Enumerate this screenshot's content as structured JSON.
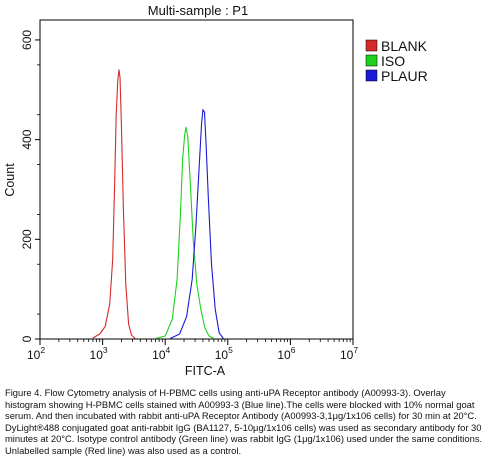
{
  "chart_data": {
    "type": "line",
    "title": "Multi-sample : P1",
    "xlabel": "FITC-A",
    "ylabel": "Count",
    "xscale": "log",
    "xlim": [
      100,
      10000000
    ],
    "ylim": [
      0,
      640
    ],
    "x_ticks": [
      {
        "value": 100,
        "base": "10",
        "exp": "2"
      },
      {
        "value": 1000,
        "base": "10",
        "exp": "3"
      },
      {
        "value": 10000,
        "base": "10",
        "exp": "4"
      },
      {
        "value": 100000,
        "base": "10",
        "exp": "5"
      },
      {
        "value": 1000000,
        "base": "10",
        "exp": "6"
      },
      {
        "value": 10000000,
        "base": "10",
        "exp": "7"
      }
    ],
    "y_ticks": [
      0,
      200,
      400,
      600
    ],
    "grid": false,
    "legend_position": "right",
    "series": [
      {
        "name": "BLANK",
        "color": "#d42a2a",
        "x": [
          700,
          900,
          1100,
          1300,
          1450,
          1550,
          1650,
          1750,
          1830,
          1900,
          2000,
          2150,
          2350,
          2600,
          2900,
          3300
        ],
        "y": [
          2,
          10,
          25,
          70,
          160,
          300,
          450,
          520,
          540,
          525,
          430,
          260,
          110,
          30,
          8,
          1
        ]
      },
      {
        "name": "ISO",
        "color": "#1fd11f",
        "x": [
          7000,
          10000,
          13000,
          15500,
          17500,
          19000,
          20500,
          21500,
          23000,
          25000,
          28000,
          32000,
          37000,
          43000,
          50000,
          60000
        ],
        "y": [
          1,
          6,
          40,
          120,
          250,
          360,
          410,
          425,
          405,
          320,
          200,
          110,
          60,
          22,
          6,
          1
        ]
      },
      {
        "name": "PLAUR",
        "color": "#1a1ad6",
        "x": [
          12000,
          17000,
          22000,
          27000,
          31000,
          35000,
          38000,
          40000,
          42500,
          45000,
          49000,
          55000,
          63000,
          73000,
          85000
        ],
        "y": [
          1,
          10,
          45,
          120,
          230,
          350,
          430,
          460,
          455,
          390,
          280,
          150,
          60,
          12,
          1
        ]
      }
    ]
  },
  "caption": "Figure 4. Flow Cytometry analysis of H-PBMC cells using anti-uPA Receptor antibody (A00993-3). Overlay histogram showing H-PBMC cells stained with A00993-3 (Blue line).The cells were blocked with 10% normal goat serum. And then incubated with rabbit anti-uPA Receptor Antibody (A00993-3,1μg/1x106 cells) for 30 min at 20°C. DyLight®488 conjugated goat anti-rabbit IgG (BA1127, 5-10μg/1x106 cells) was used as secondary antibody for 30 minutes at 20°C. Isotype control antibody (Green line) was rabbit IgG (1μg/1x106) used under the same conditions. Unlabelled sample (Red line) was also used as a control."
}
